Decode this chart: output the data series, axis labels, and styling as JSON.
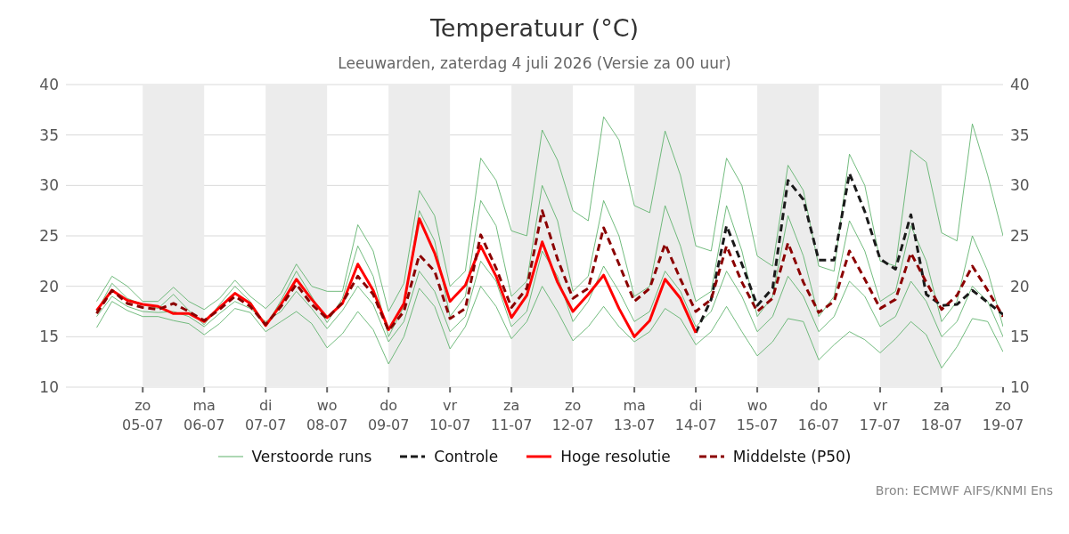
{
  "chart_data": {
    "type": "line",
    "title": "Temperatuur (°C)",
    "subtitle": "Leeuwarden, zaterdag  4 juli 2026 (Versie za 00 uur)",
    "annotations": [
      "Bron: ECMWF AIFS/KNMI Ens"
    ],
    "x": [
      "2026-07-04T06:00",
      "2026-07-04T12:00",
      "2026-07-04T18:00",
      "2026-07-05T00:00",
      "2026-07-05T06:00",
      "2026-07-05T12:00",
      "2026-07-05T18:00",
      "2026-07-06T00:00",
      "2026-07-06T06:00",
      "2026-07-06T12:00",
      "2026-07-06T18:00",
      "2026-07-07T00:00",
      "2026-07-07T06:00",
      "2026-07-07T12:00",
      "2026-07-07T18:00",
      "2026-07-08T00:00",
      "2026-07-08T06:00",
      "2026-07-08T12:00",
      "2026-07-08T18:00",
      "2026-07-09T00:00",
      "2026-07-09T06:00",
      "2026-07-09T12:00",
      "2026-07-09T18:00",
      "2026-07-10T00:00",
      "2026-07-10T06:00",
      "2026-07-10T12:00",
      "2026-07-10T18:00",
      "2026-07-11T00:00",
      "2026-07-11T06:00",
      "2026-07-11T12:00",
      "2026-07-11T18:00",
      "2026-07-12T00:00",
      "2026-07-12T06:00",
      "2026-07-12T12:00",
      "2026-07-12T18:00",
      "2026-07-13T00:00",
      "2026-07-13T06:00",
      "2026-07-13T12:00",
      "2026-07-13T18:00",
      "2026-07-14T00:00",
      "2026-07-14T06:00",
      "2026-07-14T12:00",
      "2026-07-14T18:00",
      "2026-07-15T00:00",
      "2026-07-15T06:00",
      "2026-07-15T12:00",
      "2026-07-15T18:00",
      "2026-07-16T00:00",
      "2026-07-16T06:00",
      "2026-07-16T12:00",
      "2026-07-16T18:00",
      "2026-07-17T00:00",
      "2026-07-17T06:00",
      "2026-07-17T12:00",
      "2026-07-17T18:00",
      "2026-07-18T00:00",
      "2026-07-18T06:00",
      "2026-07-18T12:00",
      "2026-07-18T18:00",
      "2026-07-19T00:00"
    ],
    "series": [
      {
        "name": "Verstoorde runs",
        "color": "#5bb068",
        "line_style": "solid",
        "values": [
          18.5,
          21,
          20,
          18.5,
          18.5,
          19.9,
          18.5,
          17.7,
          18.8,
          20.6,
          19,
          17.8,
          19.3,
          22.2,
          20,
          19.5,
          19.5,
          26.1,
          23.5,
          17.5,
          20.3,
          29.5,
          27,
          20,
          21.5,
          32.7,
          30.5,
          25.5,
          25,
          35.5,
          32.5,
          27.5,
          26.5,
          36.8,
          34.5,
          28,
          27.3,
          35.4,
          31,
          24,
          23.5,
          32.7,
          30,
          23,
          22,
          32,
          29.5,
          22,
          21.5,
          33.1,
          30,
          22.5,
          22,
          33.5,
          32.3,
          25.3,
          24.5,
          36.1,
          31,
          25
        ]
      },
      {
        "color": "#5bb068",
        "line_style": "solid",
        "values": [
          17.5,
          20.3,
          18.8,
          18.2,
          17.8,
          19.2,
          17.6,
          16.2,
          18.2,
          20.0,
          18.5,
          16.0,
          18.6,
          21.5,
          19.0,
          16.4,
          18.8,
          24.0,
          21.0,
          15.0,
          18.0,
          27.5,
          24.5,
          17.0,
          19.0,
          28.5,
          26.0,
          19.0,
          20.5,
          30.0,
          26.5,
          19.5,
          21.0,
          28.5,
          25.0,
          19.0,
          20.0,
          28.0,
          24.0,
          18.5,
          19.5,
          28.0,
          23.5,
          17.0,
          19.0,
          27.0,
          23.0,
          17.0,
          19.0,
          26.5,
          23.5,
          18.5,
          19.5,
          26.0,
          22.5,
          16.5,
          18.5,
          25.0,
          21.5,
          16.0
        ]
      },
      {
        "color": "#5bb068",
        "line_style": "solid",
        "values": [
          17.0,
          19.0,
          18.0,
          17.5,
          17.4,
          17.5,
          17.0,
          16.0,
          17.3,
          18.5,
          17.8,
          16.5,
          17.5,
          19.5,
          17.8,
          15.8,
          17.6,
          20.0,
          18.2,
          14.5,
          16.5,
          21.5,
          19.5,
          15.5,
          17.0,
          22.5,
          20.5,
          16.0,
          17.5,
          23.5,
          21.0,
          16.5,
          18.5,
          22.0,
          19.5,
          16.5,
          17.5,
          21.5,
          19.5,
          16.0,
          17.5,
          21.5,
          19.0,
          15.5,
          17.0,
          21.0,
          19.0,
          15.5,
          17.0,
          20.5,
          19.0,
          16.0,
          17.0,
          20.5,
          18.5,
          15.0,
          16.5,
          20.0,
          18.5,
          15.0
        ]
      },
      {
        "color": "#5bb068",
        "line_style": "solid",
        "values": [
          15.9,
          18.5,
          17.6,
          17,
          17,
          16.6,
          16.3,
          15.2,
          16.3,
          17.8,
          17.4,
          15.5,
          16.5,
          17.5,
          16.3,
          13.9,
          15.3,
          17.5,
          15.7,
          12.3,
          15,
          19.8,
          18,
          13.8,
          16,
          20,
          18,
          14.8,
          16.5,
          20,
          17.5,
          14.6,
          16,
          18,
          16,
          14.5,
          15.5,
          17.8,
          16.8,
          14.2,
          15.5,
          18,
          15.5,
          13.1,
          14.5,
          16.8,
          16.5,
          12.7,
          14.2,
          15.5,
          14.7,
          13.4,
          14.8,
          16.5,
          15.2,
          11.9,
          14,
          16.8,
          16.5,
          13.5
        ]
      },
      {
        "name": "Controle",
        "color": "#1a1a1a",
        "line_style": "dashed",
        "values": [
          null,
          null,
          null,
          null,
          null,
          null,
          null,
          null,
          null,
          null,
          null,
          null,
          null,
          null,
          null,
          null,
          null,
          null,
          null,
          null,
          null,
          null,
          null,
          null,
          null,
          null,
          null,
          null,
          null,
          null,
          null,
          null,
          null,
          null,
          null,
          null,
          null,
          null,
          null,
          15.4,
          18.7,
          26.0,
          22.2,
          18.1,
          19.8,
          30.5,
          28.6,
          22.6,
          22.6,
          31.2,
          27.4,
          22.7,
          21.7,
          27.1,
          19.2,
          18.1,
          18.2,
          19.6,
          18.4,
          17.2
        ]
      },
      {
        "name": "Hoge resolutie",
        "color": "#ff0000",
        "line_style": "solid",
        "values": [
          17.6,
          19.6,
          18.6,
          18.2,
          18.0,
          17.3,
          17.3,
          16.5,
          17.9,
          19.3,
          18.3,
          16.1,
          18.2,
          20.7,
          18.7,
          16.9,
          18.3,
          22.2,
          19.6,
          15.7,
          18.3,
          26.7,
          23.3,
          18.5,
          20.1,
          24.0,
          21.0,
          16.9,
          19.1,
          24.4,
          20.4,
          17.5,
          19.2,
          21.1,
          17.8,
          15.0,
          16.6,
          20.7,
          18.8,
          15.4,
          null,
          null,
          null,
          null,
          null,
          null,
          null,
          null,
          null,
          null,
          null,
          null,
          null,
          null,
          null,
          null,
          null,
          null,
          null,
          null
        ]
      },
      {
        "name": "Middelste (P50)",
        "color": "#8b0000",
        "line_style": "dashed",
        "values": [
          17.3,
          19.6,
          18.3,
          17.9,
          17.7,
          18.3,
          17.5,
          16.6,
          17.7,
          19.0,
          18.0,
          16.2,
          18.0,
          20.2,
          18.2,
          16.8,
          18.4,
          21.0,
          19.2,
          15.6,
          17.5,
          23.1,
          21.5,
          16.8,
          17.8,
          25.1,
          21.8,
          17.9,
          19.8,
          27.5,
          22.7,
          18.8,
          19.8,
          25.8,
          22.2,
          18.5,
          19.8,
          24.2,
          20.7,
          17.5,
          18.7,
          24.0,
          20.4,
          17.5,
          18.8,
          24.3,
          20.4,
          17.4,
          18.5,
          23.5,
          20.7,
          17.8,
          18.7,
          23.3,
          20.4,
          17.7,
          19.1,
          22.0,
          19.6,
          17.0
        ]
      }
    ],
    "xlim": [
      "2026-07-03T18:00",
      "2026-07-19T00:00"
    ],
    "xticks": [
      {
        "value": "2026-07-05",
        "label": "zo 05-07"
      },
      {
        "value": "2026-07-06",
        "label": "ma 06-07"
      },
      {
        "value": "2026-07-07",
        "label": "di 07-07"
      },
      {
        "value": "2026-07-08",
        "label": "wo 08-07"
      },
      {
        "value": "2026-07-09",
        "label": "do 09-07"
      },
      {
        "value": "2026-07-10",
        "label": "vr 10-07"
      },
      {
        "value": "2026-07-11",
        "label": "za 11-07"
      },
      {
        "value": "2026-07-12",
        "label": "zo 12-07"
      },
      {
        "value": "2026-07-13",
        "label": "ma 13-07"
      },
      {
        "value": "2026-07-14",
        "label": "di 14-07"
      },
      {
        "value": "2026-07-15",
        "label": "wo 15-07"
      },
      {
        "value": "2026-07-16",
        "label": "do 16-07"
      },
      {
        "value": "2026-07-17",
        "label": "vr 17-07"
      },
      {
        "value": "2026-07-18",
        "label": "za 18-07"
      },
      {
        "value": "2026-07-19",
        "label": "zo 19-07"
      }
    ],
    "ylim": [
      10,
      40
    ],
    "yticks": [
      10,
      15,
      20,
      25,
      30,
      35,
      40
    ],
    "y2lim": [
      10,
      40
    ],
    "y2ticks": [
      10,
      15,
      20,
      25,
      30,
      35,
      40
    ],
    "bands": [
      {
        "axis": "x",
        "from": "2026-07-05",
        "to": "2026-07-06",
        "color": "#ececec"
      },
      {
        "axis": "x",
        "from": "2026-07-07",
        "to": "2026-07-08",
        "color": "#ececec"
      },
      {
        "axis": "x",
        "from": "2026-07-09",
        "to": "2026-07-10",
        "color": "#ececec"
      },
      {
        "axis": "x",
        "from": "2026-07-11",
        "to": "2026-07-12",
        "color": "#ececec"
      },
      {
        "axis": "x",
        "from": "2026-07-13",
        "to": "2026-07-14",
        "color": "#ececec"
      },
      {
        "axis": "x",
        "from": "2026-07-15",
        "to": "2026-07-16",
        "color": "#ececec"
      },
      {
        "axis": "x",
        "from": "2026-07-17",
        "to": "2026-07-18",
        "color": "#ececec"
      }
    ],
    "grid": "y",
    "legend": "bottom",
    "marker": "none"
  }
}
